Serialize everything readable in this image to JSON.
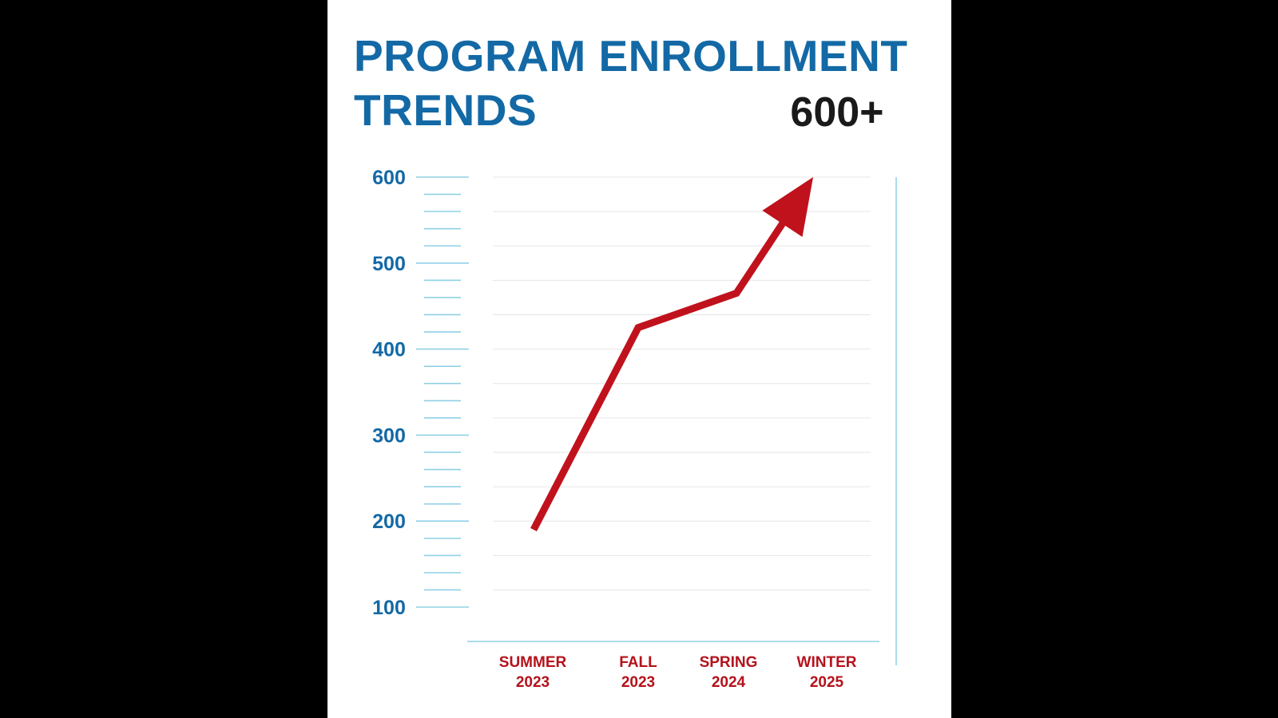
{
  "colors": {
    "title": "#1369a5",
    "axis_ticks": "#1369a5",
    "scale_lines": "#8fd0e6",
    "grid": "#e6e6e6",
    "series": "#c0121c",
    "category_labels": "#b5121b",
    "annotation": "#1a1a1a",
    "background": "#ffffff",
    "letterbox": "#000000"
  },
  "chart_data": {
    "type": "line",
    "title": [
      "PROGRAM ENROLLMENT",
      "TRENDS"
    ],
    "categories": [
      [
        "SUMMER",
        "2023"
      ],
      [
        "FALL",
        "2023"
      ],
      [
        "SPRING",
        "2024"
      ],
      [
        "WINTER",
        "2025"
      ]
    ],
    "series": [
      {
        "values": [
          190,
          425,
          465,
          600
        ]
      }
    ],
    "end_marker": "arrow",
    "annotation": "600+",
    "yticks": [
      100,
      200,
      300,
      400,
      500,
      600
    ],
    "ylim": [
      60,
      600
    ],
    "grid": true,
    "legend": "none"
  }
}
